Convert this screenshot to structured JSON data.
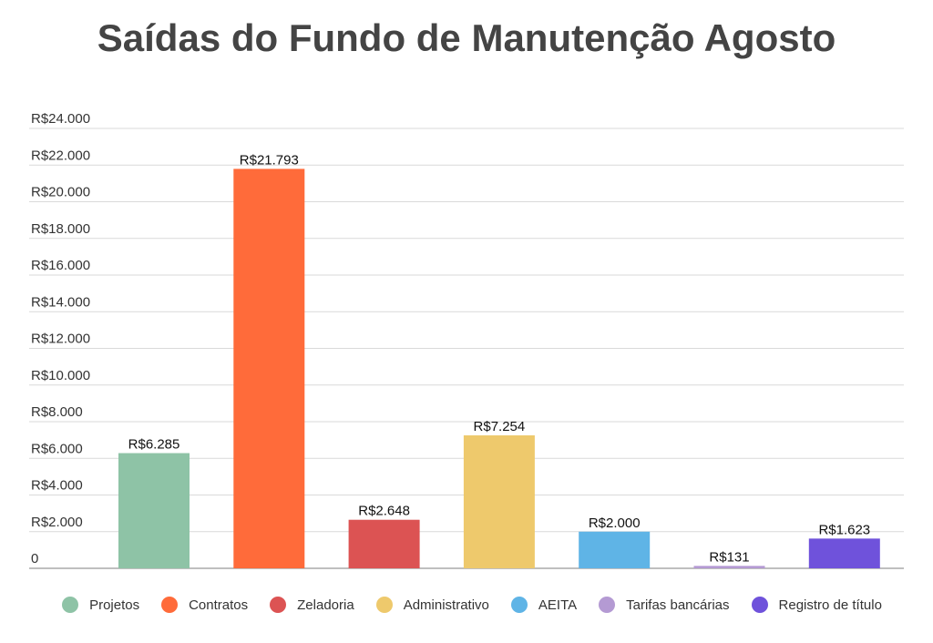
{
  "chart_data": {
    "type": "bar",
    "title": "Saídas do Fundo de Manutenção Agosto",
    "categories": [
      "Projetos",
      "Contratos",
      "Zeladoria",
      "Administrativo",
      "AEITA",
      "Tarifas bancárias",
      "Registro de título"
    ],
    "values": [
      6285,
      21793,
      2648,
      7254,
      2000,
      131,
      1623
    ],
    "value_labels": [
      "R$6.285",
      "R$21.793",
      "R$2.648",
      "R$7.254",
      "R$2.000",
      "R$131",
      "R$1.623"
    ],
    "colors": [
      "#8ec3a6",
      "#ff6b3a",
      "#dc5353",
      "#eec96c",
      "#5fb4e6",
      "#b49ad3",
      "#6f52db"
    ],
    "ylim": [
      0,
      24000
    ],
    "yticks": [
      0,
      2000,
      4000,
      6000,
      8000,
      10000,
      12000,
      14000,
      16000,
      18000,
      20000,
      22000,
      24000
    ],
    "ytick_labels": [
      "0",
      "R$2.000",
      "R$4.000",
      "R$6.000",
      "R$8.000",
      "R$10.000",
      "R$12.000",
      "R$14.000",
      "R$16.000",
      "R$18.000",
      "R$20.000",
      "R$22.000",
      "R$24.000"
    ],
    "xlabel": "",
    "ylabel": "",
    "grid": true,
    "legend_position": "bottom"
  }
}
